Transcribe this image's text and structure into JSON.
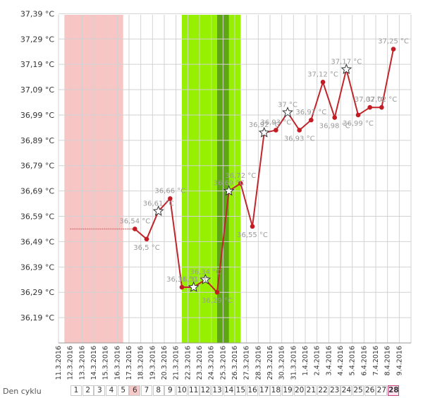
{
  "chart_data": {
    "type": "line",
    "y_tick_labels": [
      "36,19 °C",
      "36,29 °C",
      "36,39 °C",
      "36,49 °C",
      "36,59 °C",
      "36,69 °C",
      "36,79 °C",
      "36,89 °C",
      "36,99 °C",
      "37,09 °C",
      "37,19 °C",
      "37,29 °C",
      "37,39 °C"
    ],
    "y_ticks": [
      36.19,
      36.29,
      36.39,
      36.49,
      36.59,
      36.69,
      36.79,
      36.89,
      36.99,
      37.09,
      37.19,
      37.29,
      37.39
    ],
    "ylim": [
      36.09,
      37.43
    ],
    "dates": [
      "11.3.2016",
      "12.3.2016",
      "13.3.2016",
      "14.3.2016",
      "15.3.2016",
      "16.3.2016",
      "17.3.2016",
      "18.3.2016",
      "19.3.2016",
      "20.3.2016",
      "21.3.2016",
      "22.3.2016",
      "23.3.2016",
      "24.3.2016",
      "25.3.2016",
      "26.3.2016",
      "27.3.2016",
      "28.3.2016",
      "29.3.2016",
      "30.3.2016",
      "31.3.2016",
      "1.4.2016",
      "2.4.2016",
      "3.4.2016",
      "4.4.2016",
      "5.4.2016",
      "6.4.2016",
      "7.4.2016",
      "8.4.2016",
      "9.4.2016"
    ],
    "temperatures": [
      null,
      null,
      null,
      null,
      null,
      null,
      36.54,
      36.5,
      36.61,
      36.66,
      36.31,
      36.31,
      36.34,
      36.29,
      36.69,
      36.72,
      36.55,
      36.92,
      36.93,
      37.0,
      36.93,
      36.97,
      37.12,
      36.98,
      37.17,
      36.99,
      37.02,
      37.02,
      37.25,
      null
    ],
    "star_markers": [
      8,
      11,
      12,
      14,
      17,
      19,
      24
    ],
    "data_labels": [
      {
        "i": 6,
        "text": "36,54 °C"
      },
      {
        "i": 7,
        "text": "36,5 °C"
      },
      {
        "i": 8,
        "text": "36,61 °C"
      },
      {
        "i": 9,
        "text": "36,66 °C"
      },
      {
        "i": 10,
        "text": "36,31 °C"
      },
      {
        "i": 11,
        "text": "36,31 °C"
      },
      {
        "i": 12,
        "text": "36,34 °C"
      },
      {
        "i": 13,
        "text": "36,29 °C"
      },
      {
        "i": 14,
        "text": "36,69 °C"
      },
      {
        "i": 15,
        "text": "36,72 °C"
      },
      {
        "i": 16,
        "text": "36,55 °C"
      },
      {
        "i": 17,
        "text": "36,92 °C"
      },
      {
        "i": 18,
        "text": "36,93 °C"
      },
      {
        "i": 19,
        "text": "37 °C"
      },
      {
        "i": 20,
        "text": "36,93 °C"
      },
      {
        "i": 21,
        "text": "36,97 °C"
      },
      {
        "i": 22,
        "text": "37,12 °C"
      },
      {
        "i": 23,
        "text": "36,98 °C"
      },
      {
        "i": 24,
        "text": "37,17 °C"
      },
      {
        "i": 25,
        "text": "36,99 °C"
      },
      {
        "i": 26,
        "text": "37,02 °C"
      },
      {
        "i": 27,
        "text": "37,02 °C"
      },
      {
        "i": 28,
        "text": "37,25 °C"
      }
    ],
    "coverline_value": 36.54,
    "coverline_range": [
      0.5,
      6
    ],
    "period_range": [
      0.5,
      5.5
    ],
    "fertile_range": [
      10.5,
      15.5
    ],
    "ovulation_range": [
      13.5,
      14.5
    ],
    "colors": {
      "line": "#c0262c",
      "point": "#c41c24",
      "period_band": "#f8c5c5",
      "fertile_band": "#96f000",
      "ovulation_band": "#5fa615",
      "coverline": "#d77a7a",
      "grid": "#d2d2d2"
    }
  },
  "cycle_bar": {
    "title": "Den cyklu",
    "days": [
      "1",
      "2",
      "3",
      "4",
      "5",
      "6",
      "7",
      "8",
      "9",
      "10",
      "11",
      "12",
      "13",
      "14",
      "15",
      "16",
      "17",
      "18",
      "19",
      "20",
      "21",
      "22",
      "23",
      "24",
      "25",
      "26",
      "27",
      "28"
    ],
    "period_days": [
      6
    ],
    "current_day": 28
  }
}
